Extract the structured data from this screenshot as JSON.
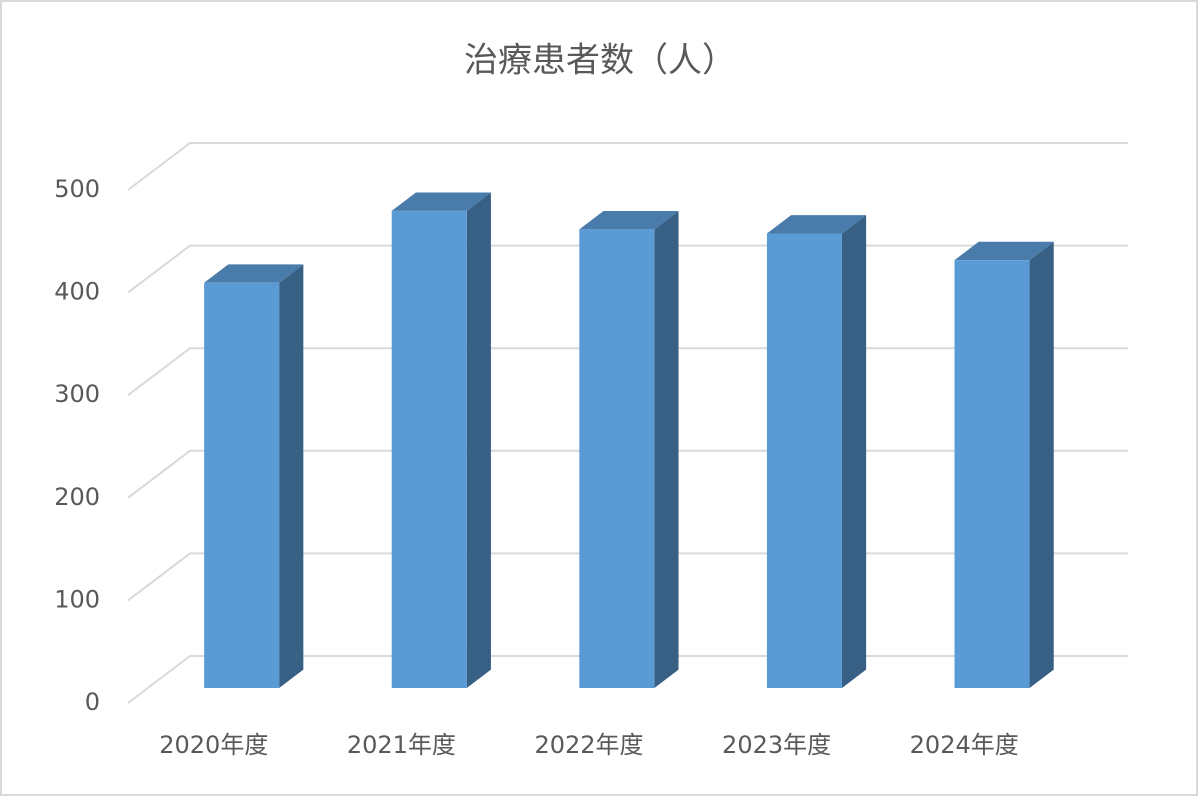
{
  "chart_data": {
    "type": "bar3d",
    "title": "治療患者数（人）",
    "categories": [
      "2020年度",
      "2021年度",
      "2022年度",
      "2023年度",
      "2024年度"
    ],
    "values": [
      395,
      465,
      447,
      443,
      417
    ],
    "color": "#5b9bd5",
    "ylim": [
      0,
      500
    ],
    "yticks": [
      0,
      100,
      200,
      300,
      400,
      500
    ],
    "grid": true
  }
}
